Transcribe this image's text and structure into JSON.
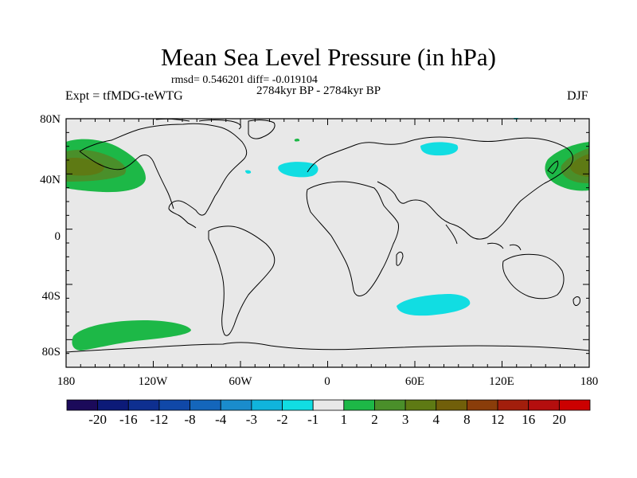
{
  "title": "Mean Sea Level Pressure (in hPa)",
  "stats_text": "rmsd= 0.546201 diff= -0.019104",
  "period": "2784kyr BP - 2784kyr BP",
  "experiment": "Expt = tfMDG-teWTG",
  "season": "DJF",
  "lat_labels": [
    "80N",
    "40N",
    "0",
    "40S",
    "80S"
  ],
  "lon_labels": [
    "180",
    "120W",
    "60W",
    "0",
    "60E",
    "120E",
    "180"
  ],
  "colorbar": {
    "labels": [
      "-20",
      "-16",
      "-12",
      "-8",
      "-4",
      "-3",
      "-2",
      "-1",
      "1",
      "2",
      "3",
      "4",
      "8",
      "12",
      "16",
      "20"
    ],
    "colors": [
      "#1b0a5a",
      "#0c1a78",
      "#0e2f90",
      "#1048a8",
      "#1466bb",
      "#1a8ccc",
      "#10b4dc",
      "#11dde2",
      "#e8e8e8",
      "#1db847",
      "#4a8f2a",
      "#5e7a14",
      "#715f0a",
      "#8a3d0a",
      "#a21e0c",
      "#b40e0e",
      "#cc0000"
    ]
  },
  "colors": {
    "background": "#e8e8e8",
    "negative_anomaly": "#11dde2",
    "positive_anomaly": "#1db847",
    "positive_strong": "#4a8f2a",
    "positive_stronger": "#5e7a14"
  }
}
